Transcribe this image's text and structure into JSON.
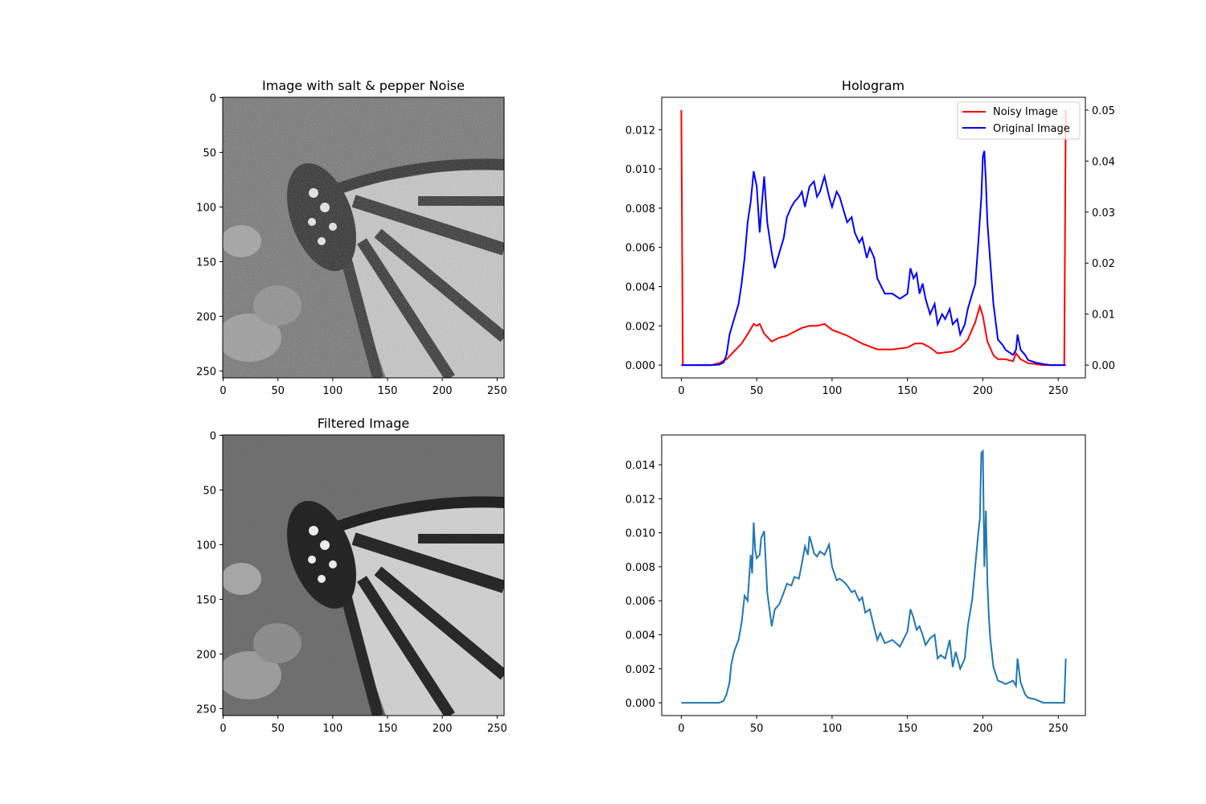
{
  "chart_data": [
    {
      "type": "image",
      "title": "Image with salt & pepper Noise",
      "xlim": [
        0,
        255
      ],
      "ylim": [
        255,
        0
      ],
      "xticks": [
        0,
        50,
        100,
        150,
        200,
        250
      ],
      "yticks": [
        0,
        50,
        100,
        150,
        200,
        250
      ],
      "colormap": "gray",
      "content": "grayscale butterfly photograph with dense salt & pepper noise"
    },
    {
      "type": "line",
      "title": "Hologram",
      "xlim": [
        -13,
        268
      ],
      "xticks": [
        0,
        50,
        100,
        150,
        200,
        250
      ],
      "legend_position": "top-right",
      "series": [
        {
          "name": "Noisy Image",
          "color": "#ff0000",
          "axis": "left",
          "ylim": [
            -0.00065,
            0.01365
          ],
          "yticks": [
            0.0,
            0.002,
            0.004,
            0.006,
            0.008,
            0.01,
            0.012
          ],
          "x": [
            0,
            1,
            20,
            25,
            30,
            35,
            40,
            45,
            48,
            50,
            52,
            55,
            60,
            65,
            70,
            75,
            80,
            85,
            90,
            95,
            100,
            110,
            120,
            130,
            140,
            150,
            155,
            160,
            165,
            170,
            180,
            185,
            190,
            195,
            198,
            200,
            203,
            207,
            210,
            215,
            220,
            222,
            225,
            230,
            240,
            250,
            254,
            255
          ],
          "y": [
            0.013,
            0.0,
            0.0,
            0.0001,
            0.0003,
            0.0007,
            0.0011,
            0.0017,
            0.0021,
            0.002,
            0.0021,
            0.0016,
            0.0012,
            0.0014,
            0.0015,
            0.0017,
            0.0019,
            0.002,
            0.002,
            0.0021,
            0.0018,
            0.0015,
            0.0011,
            0.0008,
            0.0008,
            0.0009,
            0.0011,
            0.0011,
            0.0009,
            0.0006,
            0.0007,
            0.0009,
            0.0013,
            0.0022,
            0.003,
            0.0025,
            0.0012,
            0.0005,
            0.0003,
            0.0003,
            0.0002,
            0.0006,
            0.0003,
            0.0001,
            0.0,
            0.0,
            0.0,
            0.013
          ]
        },
        {
          "name": "Original Image",
          "color": "#0000ff",
          "axis": "right",
          "ylim": [
            -0.0025,
            0.0525
          ],
          "yticks": [
            0.0,
            0.01,
            0.02,
            0.03,
            0.04,
            0.05
          ],
          "x": [
            0,
            20,
            25,
            28,
            30,
            32,
            35,
            38,
            40,
            42,
            44,
            46,
            48,
            50,
            52,
            53,
            55,
            57,
            60,
            62,
            65,
            68,
            70,
            73,
            75,
            78,
            80,
            82,
            85,
            88,
            90,
            92,
            95,
            98,
            100,
            103,
            105,
            108,
            110,
            113,
            115,
            118,
            120,
            123,
            125,
            128,
            130,
            135,
            140,
            145,
            150,
            152,
            154,
            156,
            158,
            160,
            162,
            165,
            168,
            170,
            173,
            175,
            178,
            180,
            183,
            185,
            188,
            190,
            193,
            195,
            197,
            199,
            200,
            201,
            202,
            203,
            205,
            207,
            210,
            213,
            215,
            220,
            222,
            223,
            225,
            228,
            230,
            235,
            240,
            245,
            250,
            255
          ],
          "y": [
            0.0,
            0.0,
            0.0001,
            0.0005,
            0.002,
            0.006,
            0.009,
            0.012,
            0.016,
            0.021,
            0.028,
            0.032,
            0.038,
            0.035,
            0.026,
            0.03,
            0.037,
            0.028,
            0.022,
            0.019,
            0.022,
            0.025,
            0.029,
            0.031,
            0.032,
            0.033,
            0.034,
            0.031,
            0.035,
            0.036,
            0.033,
            0.034,
            0.037,
            0.033,
            0.031,
            0.034,
            0.033,
            0.03,
            0.028,
            0.029,
            0.026,
            0.024,
            0.025,
            0.021,
            0.023,
            0.021,
            0.017,
            0.014,
            0.014,
            0.013,
            0.014,
            0.019,
            0.017,
            0.018,
            0.014,
            0.016,
            0.013,
            0.01,
            0.012,
            0.008,
            0.01,
            0.009,
            0.011,
            0.008,
            0.009,
            0.006,
            0.008,
            0.011,
            0.014,
            0.016,
            0.024,
            0.033,
            0.041,
            0.042,
            0.036,
            0.028,
            0.02,
            0.012,
            0.005,
            0.004,
            0.003,
            0.002,
            0.003,
            0.006,
            0.003,
            0.002,
            0.001,
            0.0005,
            0.0002,
            0.0,
            0.0,
            0.0
          ]
        }
      ]
    },
    {
      "type": "image",
      "title": "Filtered Image",
      "xlim": [
        0,
        255
      ],
      "ylim": [
        255,
        0
      ],
      "xticks": [
        0,
        50,
        100,
        150,
        200,
        250
      ],
      "yticks": [
        0,
        50,
        100,
        150,
        200,
        250
      ],
      "colormap": "gray",
      "content": "grayscale butterfly photograph after median filtering, few residual noise specks"
    },
    {
      "type": "line",
      "title": "",
      "xlim": [
        -13,
        268
      ],
      "ylim": [
        -0.00075,
        0.01575
      ],
      "xticks": [
        0,
        50,
        100,
        150,
        200,
        250
      ],
      "yticks": [
        0.0,
        0.002,
        0.004,
        0.006,
        0.008,
        0.01,
        0.012,
        0.014
      ],
      "series": [
        {
          "color": "#1f77b4",
          "x": [
            0,
            25,
            28,
            30,
            32,
            33,
            35,
            38,
            40,
            42,
            44,
            46,
            47,
            48,
            49,
            50,
            52,
            53,
            55,
            57,
            60,
            62,
            65,
            68,
            70,
            73,
            75,
            78,
            80,
            82,
            84,
            85,
            86,
            88,
            90,
            92,
            95,
            98,
            100,
            103,
            105,
            108,
            110,
            113,
            115,
            118,
            120,
            122,
            125,
            128,
            130,
            132,
            135,
            140,
            145,
            150,
            152,
            154,
            156,
            158,
            160,
            162,
            165,
            168,
            170,
            172,
            175,
            178,
            180,
            182,
            185,
            188,
            190,
            193,
            195,
            197,
            198,
            199,
            200,
            201,
            202,
            203,
            204,
            205,
            207,
            210,
            213,
            215,
            220,
            222,
            223,
            225,
            228,
            230,
            235,
            240,
            245,
            250,
            254,
            255
          ],
          "y": [
            0.0,
            0.0,
            0.0001,
            0.0005,
            0.0012,
            0.0022,
            0.003,
            0.0037,
            0.0047,
            0.0063,
            0.006,
            0.0087,
            0.0076,
            0.0106,
            0.009,
            0.0085,
            0.0087,
            0.0097,
            0.0101,
            0.0065,
            0.0045,
            0.0055,
            0.0058,
            0.0065,
            0.007,
            0.0069,
            0.0074,
            0.0073,
            0.0082,
            0.0092,
            0.0087,
            0.0098,
            0.0095,
            0.0088,
            0.0086,
            0.0089,
            0.0087,
            0.0093,
            0.008,
            0.0072,
            0.0073,
            0.0071,
            0.0069,
            0.0065,
            0.0066,
            0.006,
            0.0062,
            0.0053,
            0.0055,
            0.0044,
            0.0037,
            0.0041,
            0.0035,
            0.0037,
            0.0033,
            0.0042,
            0.0055,
            0.005,
            0.0043,
            0.0045,
            0.004,
            0.0034,
            0.0038,
            0.004,
            0.0026,
            0.0028,
            0.0026,
            0.0037,
            0.0021,
            0.003,
            0.002,
            0.0026,
            0.0045,
            0.0061,
            0.0081,
            0.01,
            0.0108,
            0.0147,
            0.0148,
            0.008,
            0.0113,
            0.0071,
            0.005,
            0.0037,
            0.0021,
            0.0013,
            0.0012,
            0.0011,
            0.0013,
            0.001,
            0.0026,
            0.0012,
            0.0005,
            0.0003,
            0.0002,
            0.0,
            0.0,
            0.0,
            0.0,
            0.0026
          ]
        }
      ]
    }
  ]
}
